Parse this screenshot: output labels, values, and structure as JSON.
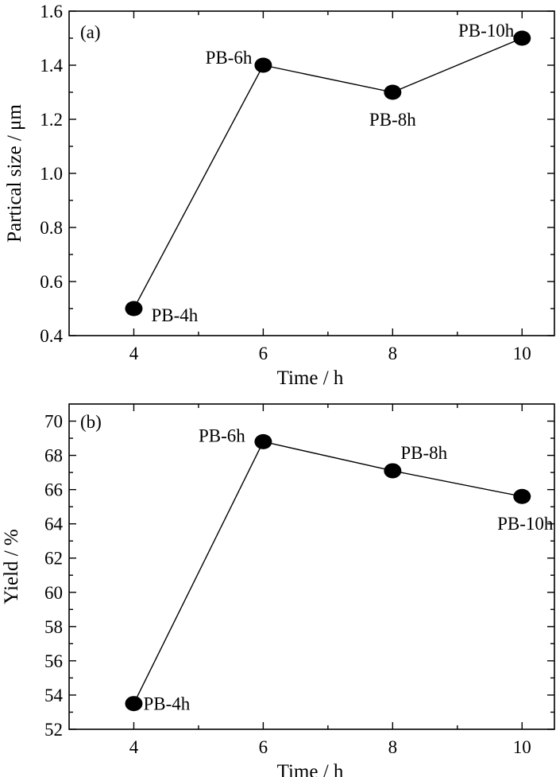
{
  "chart_data": [
    {
      "type": "line",
      "panel_label": "(a)",
      "xlabel": "Time / h",
      "ylabel": "Partical size / μm",
      "x": [
        4,
        6,
        8,
        10
      ],
      "xlim": [
        3,
        10.5
      ],
      "ylim": [
        0.4,
        1.6
      ],
      "xticks": [
        "4",
        "6",
        "8",
        "10"
      ],
      "yticks": [
        "0.4",
        "0.6",
        "0.8",
        "1.0",
        "1.2",
        "1.4",
        "1.6"
      ],
      "series": [
        {
          "values": [
            0.5,
            1.4,
            1.3,
            1.5
          ],
          "point_labels": [
            "PB-4h",
            "PB-6h",
            "PB-8h",
            "PB-10h"
          ]
        }
      ],
      "marker_color": "#000000",
      "grid": false
    },
    {
      "type": "line",
      "panel_label": "(b)",
      "xlabel": "Time / h",
      "ylabel": "Yield / %",
      "x": [
        4,
        6,
        8,
        10
      ],
      "xlim": [
        3,
        10.5
      ],
      "ylim": [
        52,
        71
      ],
      "xticks": [
        "4",
        "6",
        "8",
        "10"
      ],
      "yticks": [
        "52",
        "54",
        "56",
        "58",
        "60",
        "62",
        "64",
        "66",
        "68",
        "70"
      ],
      "series": [
        {
          "values": [
            53.5,
            68.8,
            67.1,
            65.6
          ],
          "point_labels": [
            "PB-4h",
            "PB-6h",
            "PB-8h",
            "PB-10h"
          ]
        }
      ],
      "marker_color": "#000000",
      "grid": false
    }
  ]
}
